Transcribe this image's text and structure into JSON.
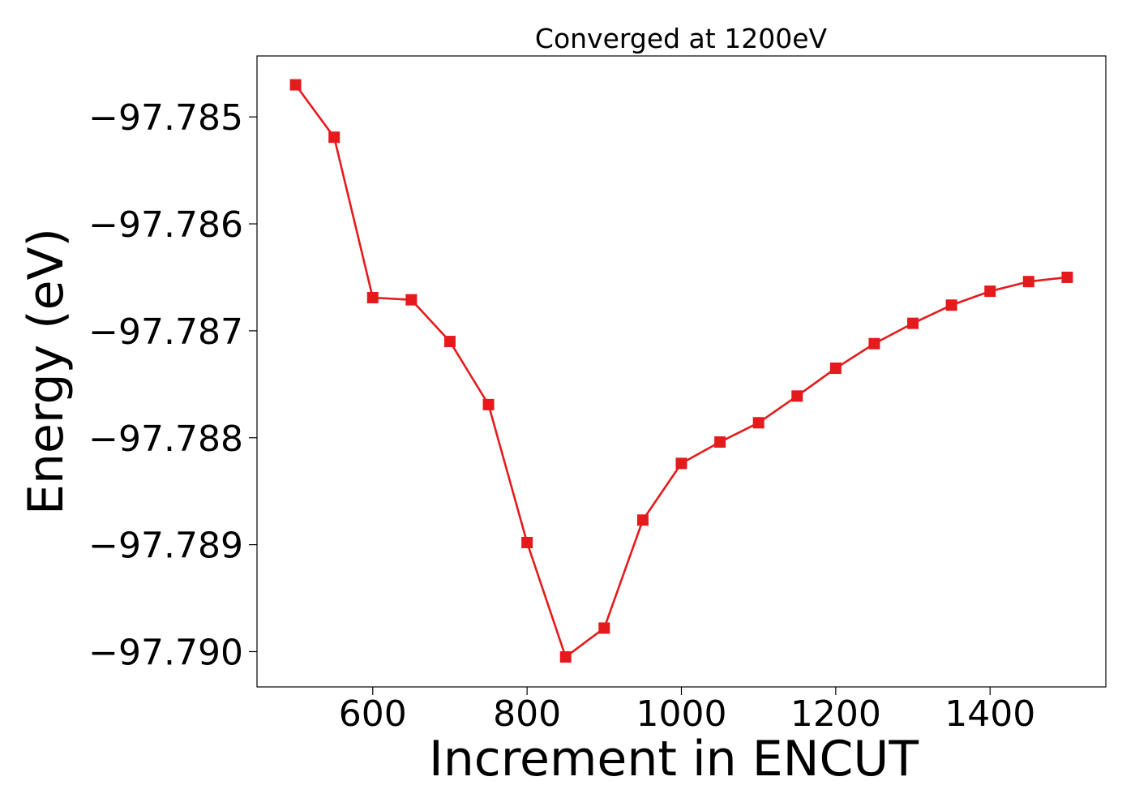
{
  "chart_data": {
    "type": "line",
    "title": "Converged at 1200eV",
    "xlabel": "Increment in ENCUT",
    "ylabel": "Energy (eV)",
    "xlim": [
      450,
      1550
    ],
    "ylim": [
      -97.79033,
      -97.78443
    ],
    "x_ticks": [
      600,
      800,
      1000,
      1200,
      1400
    ],
    "x_tick_labels": [
      "600",
      "800",
      "1000",
      "1200",
      "1400"
    ],
    "y_ticks": [
      -97.785,
      -97.786,
      -97.787,
      -97.788,
      -97.789,
      -97.79
    ],
    "y_tick_labels": [
      "−97.785",
      "−97.786",
      "−97.787",
      "−97.788",
      "−97.789",
      "−97.790"
    ],
    "grid": false,
    "series": [
      {
        "color": "#e41a1c",
        "marker": "square",
        "x": [
          500,
          550,
          600,
          650,
          700,
          750,
          800,
          850,
          900,
          950,
          1000,
          1050,
          1100,
          1150,
          1200,
          1250,
          1300,
          1350,
          1400,
          1450,
          1500
        ],
        "y": [
          -97.7847,
          -97.78519,
          -97.78669,
          -97.78671,
          -97.7871,
          -97.78769,
          -97.78898,
          -97.79005,
          -97.78978,
          -97.78877,
          -97.78824,
          -97.78804,
          -97.78786,
          -97.78761,
          -97.78735,
          -97.78712,
          -97.78693,
          -97.78676,
          -97.78663,
          -97.78654,
          -97.7865
        ]
      }
    ]
  }
}
